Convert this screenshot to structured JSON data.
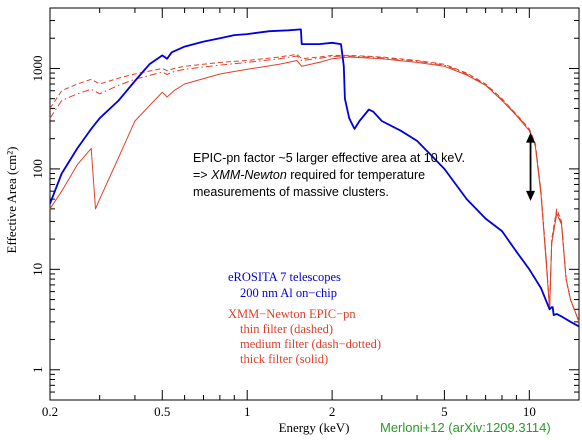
{
  "chart_data": {
    "type": "line",
    "xlabel": "Energy (keV)",
    "ylabel": "Effective Area (cm²)",
    "xscale": "log",
    "yscale": "log",
    "xlim": [
      0.2,
      15
    ],
    "ylim": [
      0.5,
      4000
    ],
    "x_ticks": [
      {
        "value": 0.2,
        "label": "0.2"
      },
      {
        "value": 0.5,
        "label": "0.5"
      },
      {
        "value": 1,
        "label": "1"
      },
      {
        "value": 2,
        "label": "2"
      },
      {
        "value": 5,
        "label": "5"
      },
      {
        "value": 10,
        "label": "10"
      }
    ],
    "y_ticks": [
      {
        "value": 1,
        "label": "1"
      },
      {
        "value": 10,
        "label": "10"
      },
      {
        "value": 100,
        "label": "100"
      },
      {
        "value": 1000,
        "label": "1000"
      }
    ],
    "colors": {
      "erosita": "#0000dd",
      "xmm": "#e0402a",
      "credit": "#2a9a2a",
      "axis": "#000000"
    },
    "series": [
      {
        "name": "eROSITA 7 telescopes",
        "color": "#0000dd",
        "style": "solid",
        "x": [
          0.2,
          0.22,
          0.25,
          0.28,
          0.3,
          0.35,
          0.4,
          0.45,
          0.5,
          0.52,
          0.54,
          0.6,
          0.7,
          0.8,
          0.9,
          1.0,
          1.2,
          1.4,
          1.55,
          1.56,
          1.8,
          2.0,
          2.15,
          2.2,
          2.22,
          2.3,
          2.4,
          2.5,
          2.7,
          2.8,
          3.0,
          3.5,
          4.0,
          5.0,
          6.0,
          7.0,
          8.0,
          9.0,
          10.0,
          11.0,
          11.8,
          12.0,
          12.1,
          12.2,
          12.5,
          13.0,
          14.0,
          15.0
        ],
        "y": [
          45,
          90,
          160,
          250,
          320,
          480,
          750,
          1100,
          1350,
          1250,
          1450,
          1650,
          1850,
          2000,
          2150,
          2200,
          2350,
          2400,
          2450,
          1750,
          1750,
          1800,
          1750,
          1050,
          500,
          320,
          250,
          300,
          390,
          370,
          300,
          240,
          190,
          100,
          50,
          32,
          24,
          15,
          10,
          6.5,
          4,
          4.2,
          4.2,
          3.5,
          3.6,
          3.4,
          3.0,
          2.7
        ]
      },
      {
        "name": "thin filter (dashed)",
        "color": "#e0402a",
        "style": "dashed",
        "x": [
          0.2,
          0.22,
          0.25,
          0.28,
          0.3,
          0.35,
          0.4,
          0.5,
          0.52,
          0.55,
          0.6,
          0.8,
          1.0,
          1.3,
          1.5,
          1.56,
          1.8,
          2.0,
          2.3,
          3.0,
          4.0,
          5.0,
          6.0,
          7.0,
          8.0,
          9.0,
          10.0,
          10.5,
          11.0,
          11.5,
          11.8,
          12.0,
          12.5,
          13.0,
          13.5,
          14.0,
          15.0
        ],
        "y": [
          400,
          600,
          700,
          780,
          700,
          800,
          880,
          1000,
          950,
          1000,
          1050,
          1150,
          1200,
          1300,
          1380,
          1250,
          1300,
          1350,
          1350,
          1300,
          1200,
          1100,
          900,
          700,
          500,
          350,
          250,
          180,
          60,
          12,
          4,
          20,
          40,
          30,
          8,
          5,
          3
        ]
      },
      {
        "name": "medium filter (dash−dotted)",
        "color": "#e0402a",
        "style": "dashdot",
        "x": [
          0.2,
          0.22,
          0.25,
          0.28,
          0.3,
          0.35,
          0.4,
          0.5,
          0.52,
          0.55,
          0.6,
          0.8,
          1.0,
          1.3,
          1.5,
          1.56,
          1.8,
          2.0,
          2.3,
          3.0,
          4.0,
          5.0,
          6.0,
          7.0,
          8.0,
          9.0,
          10.0,
          10.5,
          11.0,
          11.5,
          11.8,
          12.0,
          12.5,
          13.0,
          13.5,
          14.0,
          15.0
        ],
        "y": [
          320,
          480,
          560,
          620,
          560,
          680,
          780,
          920,
          870,
          930,
          980,
          1080,
          1150,
          1250,
          1330,
          1200,
          1260,
          1320,
          1330,
          1280,
          1180,
          1080,
          880,
          690,
          490,
          345,
          245,
          175,
          58,
          12,
          4,
          19,
          38,
          29,
          8,
          5,
          3
        ]
      },
      {
        "name": "thick filter (solid)",
        "color": "#e0402a",
        "style": "solid",
        "x": [
          0.2,
          0.22,
          0.25,
          0.28,
          0.29,
          0.3,
          0.35,
          0.4,
          0.5,
          0.52,
          0.55,
          0.6,
          0.8,
          1.0,
          1.3,
          1.5,
          1.56,
          1.8,
          2.0,
          2.3,
          3.0,
          4.0,
          5.0,
          6.0,
          7.0,
          8.0,
          9.0,
          10.0,
          10.5,
          11.0,
          11.5,
          11.8,
          12.0,
          12.5,
          13.0,
          13.5,
          14.0,
          15.0
        ],
        "y": [
          40,
          60,
          110,
          160,
          40,
          50,
          130,
          300,
          580,
          520,
          600,
          700,
          880,
          980,
          1100,
          1200,
          1050,
          1150,
          1250,
          1300,
          1250,
          1150,
          1050,
          860,
          680,
          480,
          340,
          240,
          170,
          55,
          11,
          4,
          18,
          36,
          28,
          8,
          5,
          3
        ]
      }
    ],
    "annotations": [
      {
        "text_lines": [
          "EPIC-pn factor ~5 larger effective area at 10 keV.",
          "=> XMM-Newton required for temperature",
          "measurements of massive clusters."
        ],
        "italic_phrase": "XMM-Newton"
      },
      {
        "arrow": {
          "x": 10.1,
          "y_from": 48,
          "y_to": 230
        }
      }
    ],
    "legend": {
      "blue": [
        "eROSITA 7 telescopes",
        "200 nm Al on−chip"
      ],
      "red": [
        "XMM−Newton EPIC−pn",
        "thin filter (dashed)",
        "medium filter (dash−dotted)",
        "thick filter (solid)"
      ]
    },
    "credit": "Merloni+12 (arXiv:1209.3114)"
  }
}
